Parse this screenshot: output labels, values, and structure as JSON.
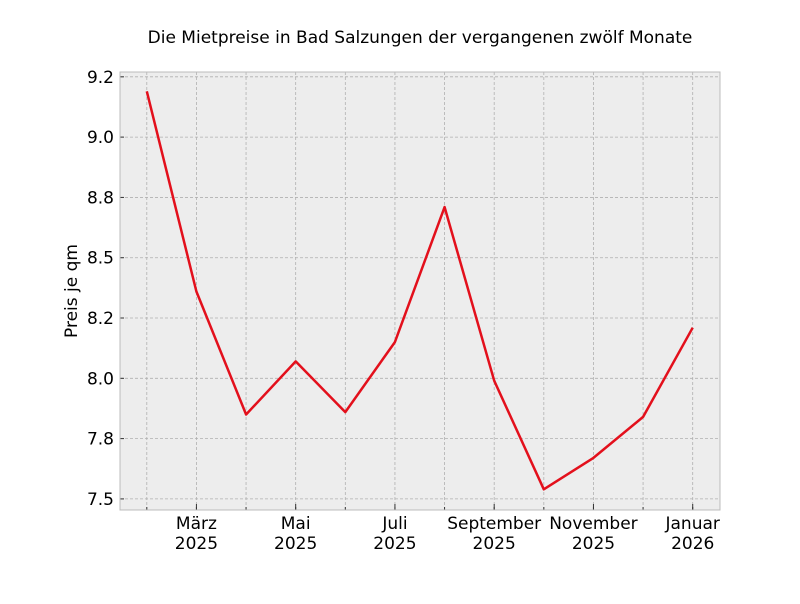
{
  "chart_data": {
    "type": "line",
    "title": "Die Mietpreise in Bad Salzungen der vergangenen zwölf Monate",
    "xlabel": "",
    "ylabel": "Preis je qm",
    "x": [
      "2025-02",
      "2025-03",
      "2025-04",
      "2025-05",
      "2025-06",
      "2025-07",
      "2025-08",
      "2025-09",
      "2025-10",
      "2025-11",
      "2025-12",
      "2026-01"
    ],
    "series": [
      {
        "name": "Preis je qm",
        "color": "#e3101c",
        "values": [
          9.19,
          8.36,
          7.85,
          8.07,
          7.86,
          8.15,
          8.71,
          7.99,
          7.54,
          7.67,
          7.84,
          8.21
        ]
      }
    ],
    "ylim": [
      7.454,
      9.27
    ],
    "xlim_index": [
      -0.54,
      11.55
    ],
    "y_ticks": [
      {
        "value": 7.5,
        "label": "7.5"
      },
      {
        "value": 7.75,
        "label": "7.8"
      },
      {
        "value": 8.0,
        "label": "8.0"
      },
      {
        "value": 8.25,
        "label": "8.2"
      },
      {
        "value": 8.5,
        "label": "8.5"
      },
      {
        "value": 8.75,
        "label": "8.8"
      },
      {
        "value": 9.0,
        "label": "9.0"
      },
      {
        "value": 9.25,
        "label": "9.2"
      }
    ],
    "x_minor_ticks": [
      0,
      1,
      2,
      3,
      4,
      5,
      6,
      7,
      8,
      9,
      10,
      11
    ],
    "x_ticks": [
      {
        "index": 1,
        "label": [
          "März",
          "2025"
        ]
      },
      {
        "index": 3,
        "label": [
          "Mai",
          "2025"
        ]
      },
      {
        "index": 5,
        "label": [
          "Juli",
          "2025"
        ]
      },
      {
        "index": 7,
        "label": [
          "September",
          "2025"
        ]
      },
      {
        "index": 9,
        "label": [
          "November",
          "2025"
        ]
      },
      {
        "index": 11,
        "label": [
          "Januar",
          "2026"
        ]
      }
    ],
    "grid": true,
    "background": "#ededed"
  }
}
